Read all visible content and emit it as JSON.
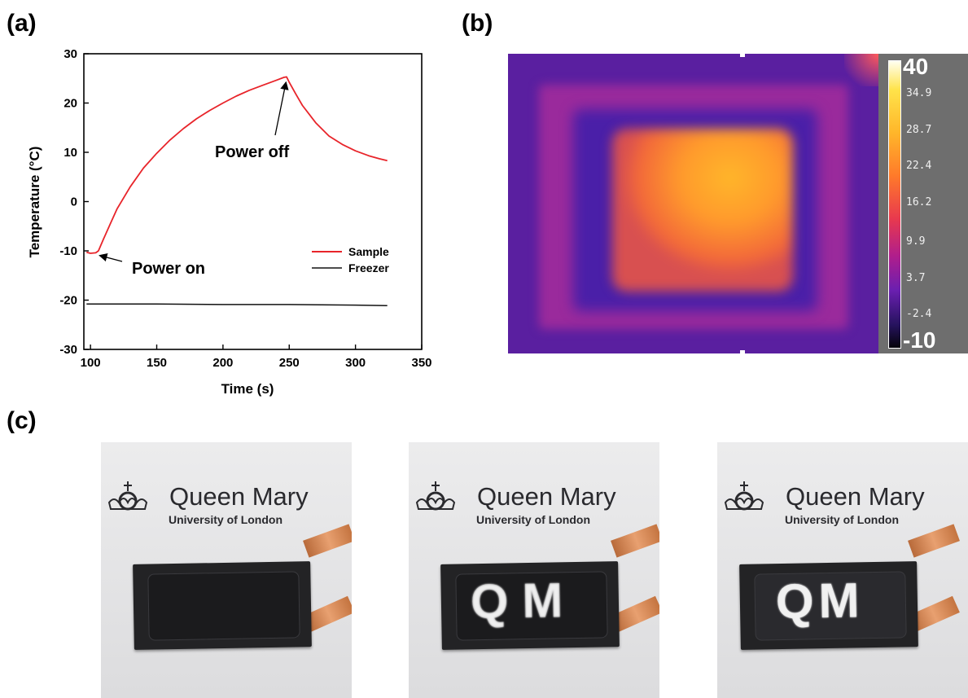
{
  "panels": {
    "a": "(a)",
    "b": "(b)",
    "c": "(c)"
  },
  "chart_data": {
    "type": "line",
    "xlabel": "Time (s)",
    "ylabel": "Temperature (°C)",
    "xlim": [
      95,
      350
    ],
    "ylim": [
      -30,
      30
    ],
    "xticks": [
      100,
      150,
      200,
      250,
      300,
      350
    ],
    "yticks": [
      -30,
      -20,
      -10,
      0,
      10,
      20,
      30
    ],
    "legend_position": "center-right",
    "series": [
      {
        "name": "Sample",
        "color": "#e8242a",
        "x": [
          97,
          100,
          104,
          106,
          110,
          115,
          120,
          130,
          140,
          150,
          160,
          170,
          180,
          190,
          200,
          210,
          220,
          230,
          240,
          246,
          248,
          250,
          255,
          260,
          270,
          280,
          290,
          300,
          310,
          318,
          324
        ],
        "y": [
          -10.3,
          -10.5,
          -10.4,
          -10,
          -7.5,
          -4.5,
          -1.5,
          3,
          6.8,
          9.8,
          12.5,
          14.8,
          16.8,
          18.5,
          20,
          21.4,
          22.6,
          23.6,
          24.6,
          25.2,
          25.3,
          24.2,
          21.8,
          19.5,
          16,
          13.3,
          11.6,
          10.3,
          9.3,
          8.7,
          8.3
        ]
      },
      {
        "name": "Freezer",
        "color": "#111111",
        "x": [
          97,
          150,
          200,
          250,
          300,
          324
        ],
        "y": [
          -20.8,
          -20.8,
          -20.9,
          -20.9,
          -21,
          -21.1
        ]
      }
    ],
    "annotations": [
      {
        "text": "Power on",
        "at": [
          104,
          -10.5
        ]
      },
      {
        "text": "Power off",
        "at": [
          248,
          25
        ]
      }
    ]
  },
  "thermal": {
    "colorbar_max": "40",
    "colorbar_min": "-10",
    "colorbar_ticks": [
      "34.9",
      "28.7",
      "22.4",
      "16.2",
      "9.9",
      "3.7",
      "-2.4"
    ]
  },
  "photos": [
    {
      "title": "Queen Mary",
      "subtitle": "University of London",
      "letters": ""
    },
    {
      "title": "Queen Mary",
      "subtitle": "University of London",
      "letters": "Q M"
    },
    {
      "title": "Queen Mary",
      "subtitle": "University of London",
      "letters": "QM"
    }
  ]
}
